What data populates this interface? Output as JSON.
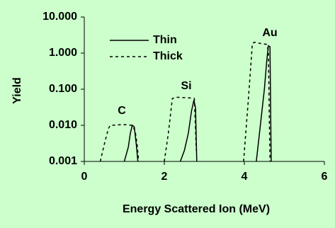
{
  "chart_data": {
    "type": "line",
    "xlabel": "Energy Scattered Ion (MeV)",
    "ylabel": "Yield",
    "xlim": [
      0,
      6
    ],
    "xticks": [
      0,
      2,
      4,
      6
    ],
    "ylim": [
      0.001,
      10
    ],
    "yticks": [
      {
        "value": 0.001,
        "label": "0.001"
      },
      {
        "value": 0.01,
        "label": "0.010"
      },
      {
        "value": 0.1,
        "label": "0.100"
      },
      {
        "value": 1,
        "label": "1.000"
      },
      {
        "value": 10,
        "label": "10.000"
      }
    ],
    "log_y": true,
    "grid": false,
    "legend": "upper left",
    "annotations": [
      "C",
      "Si",
      "Au"
    ],
    "series": [
      {
        "name": "Thin",
        "color": "#000000",
        "style": "solid",
        "x": [
          1.0,
          1.1,
          1.15,
          1.2,
          1.25,
          1.3,
          1.34,
          1.8,
          2.4,
          2.5,
          2.6,
          2.68,
          2.74,
          2.78,
          2.81,
          3.5,
          4.3,
          4.4,
          4.5,
          4.56,
          4.6,
          4.64,
          4.67
        ],
        "values": [
          0.001,
          0.0025,
          0.006,
          0.01,
          0.009,
          0.003,
          0.001,
          null,
          0.001,
          0.002,
          0.006,
          0.025,
          0.05,
          0.03,
          0.001,
          null,
          0.001,
          0.01,
          0.1,
          0.6,
          1.6,
          1.5,
          0.001
        ]
      },
      {
        "name": "Thick",
        "color": "#000000",
        "style": "dashed",
        "x": [
          0.4,
          0.5,
          0.6,
          0.65,
          1.0,
          1.2,
          1.27,
          1.32,
          1.36,
          1.8,
          2.0,
          2.1,
          2.2,
          2.3,
          2.6,
          2.75,
          2.8,
          3.5,
          3.98,
          4.1,
          4.2,
          4.25,
          4.4,
          4.55,
          4.6,
          4.64
        ],
        "values": [
          0.001,
          0.003,
          0.008,
          0.01,
          0.0105,
          0.01,
          0.007,
          0.003,
          0.001,
          null,
          0.001,
          0.006,
          0.055,
          0.06,
          0.058,
          0.055,
          0.002,
          null,
          0.001,
          0.05,
          1.8,
          2.0,
          1.85,
          1.75,
          1.2,
          0.001
        ]
      }
    ]
  }
}
